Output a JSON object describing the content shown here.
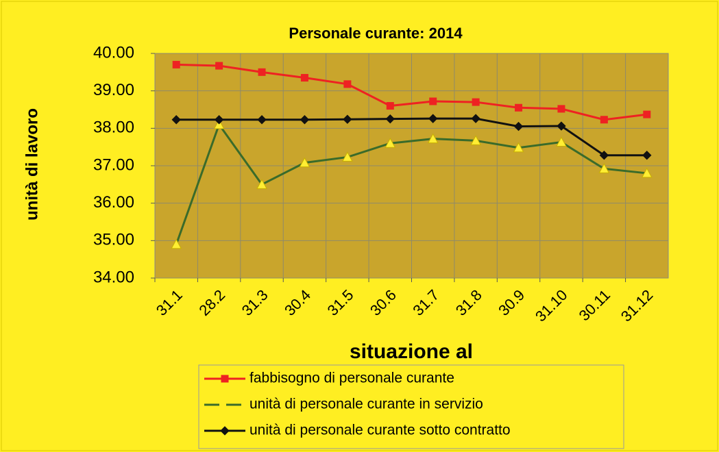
{
  "chart_data": {
    "type": "line",
    "title": "Personale curante: 2014",
    "x_label": "situazione al",
    "y_label": "unità di lavoro",
    "categories": [
      "31.1",
      "28.2",
      "31.3",
      "30.4",
      "31.5",
      "30.6",
      "31.7",
      "31.8",
      "30.9",
      "31.10",
      "30.11",
      "31.12"
    ],
    "series": [
      {
        "name": "fabbisogno di personale curante",
        "color": "#ee2222",
        "marker": "square",
        "values": [
          39.7,
          39.67,
          39.5,
          39.35,
          39.18,
          38.6,
          38.72,
          38.7,
          38.55,
          38.52,
          38.23,
          38.37
        ]
      },
      {
        "name": "unità di personale curante in servizio",
        "color": "#3a6b2a",
        "marker": "triangle",
        "marker_color": "#ffee33",
        "values": [
          34.9,
          38.1,
          36.5,
          37.08,
          37.23,
          37.6,
          37.72,
          37.67,
          37.48,
          37.63,
          36.92,
          36.8
        ]
      },
      {
        "name": "unità di personale curante sotto contratto",
        "color": "#111111",
        "marker": "diamond",
        "values": [
          38.23,
          38.23,
          38.23,
          38.23,
          38.24,
          38.25,
          38.26,
          38.26,
          38.05,
          38.06,
          37.28,
          37.28
        ]
      }
    ],
    "ylim": [
      34,
      40
    ],
    "yticks": [
      {
        "value": 34,
        "label": "34.00"
      },
      {
        "value": 35,
        "label": "35.00"
      },
      {
        "value": 36,
        "label": "36.00"
      },
      {
        "value": 37,
        "label": "37.00"
      },
      {
        "value": 38,
        "label": "38.00"
      },
      {
        "value": 39,
        "label": "39.00"
      },
      {
        "value": 40,
        "label": "40.00"
      }
    ],
    "grid": true
  }
}
